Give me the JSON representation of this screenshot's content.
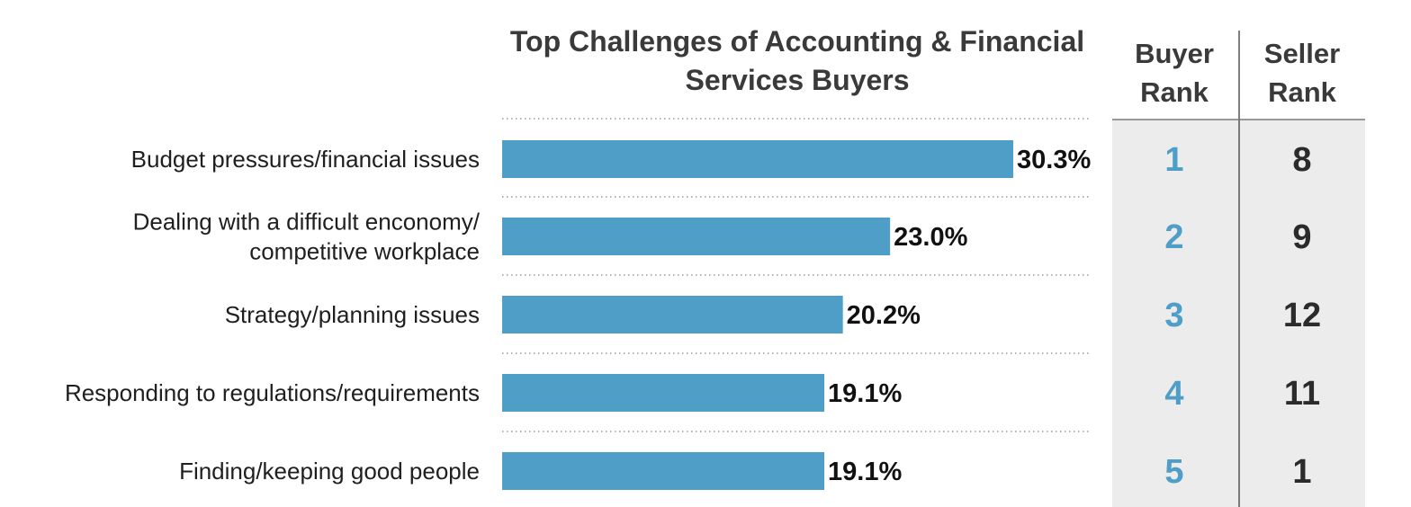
{
  "chart_data": {
    "type": "bar",
    "orientation": "horizontal",
    "title_lines": [
      "Top Challenges of Accounting & Financial",
      "Services Buyers"
    ],
    "categories": [
      [
        "Budget pressures/financial issues"
      ],
      [
        "Dealing with a difficult enconomy/",
        "competitive workplace"
      ],
      [
        "Strategy/planning issues"
      ],
      [
        "Responding to regulations/requirements"
      ],
      [
        "Finding/keeping good people"
      ]
    ],
    "values": [
      30.3,
      23.0,
      20.2,
      19.1,
      19.1
    ],
    "value_labels": [
      "30.3%",
      "23.0%",
      "20.2%",
      "19.1%",
      "19.1%"
    ],
    "xlim": [
      0,
      30.3
    ],
    "grid": "dotted separators between rows",
    "table": {
      "columns": [
        {
          "header_lines": [
            "Buyer",
            "Rank"
          ],
          "values": [
            "1",
            "2",
            "3",
            "4",
            "5"
          ]
        },
        {
          "header_lines": [
            "Seller",
            "Rank"
          ],
          "values": [
            "8",
            "9",
            "12",
            "11",
            "1"
          ]
        }
      ]
    }
  },
  "colors": {
    "bar": "#4f9ec8",
    "buyer_rank_text": "#4f9ec8",
    "table_background": "#ececec",
    "separator": "#9a9a9a",
    "column_divider": "#555555"
  }
}
